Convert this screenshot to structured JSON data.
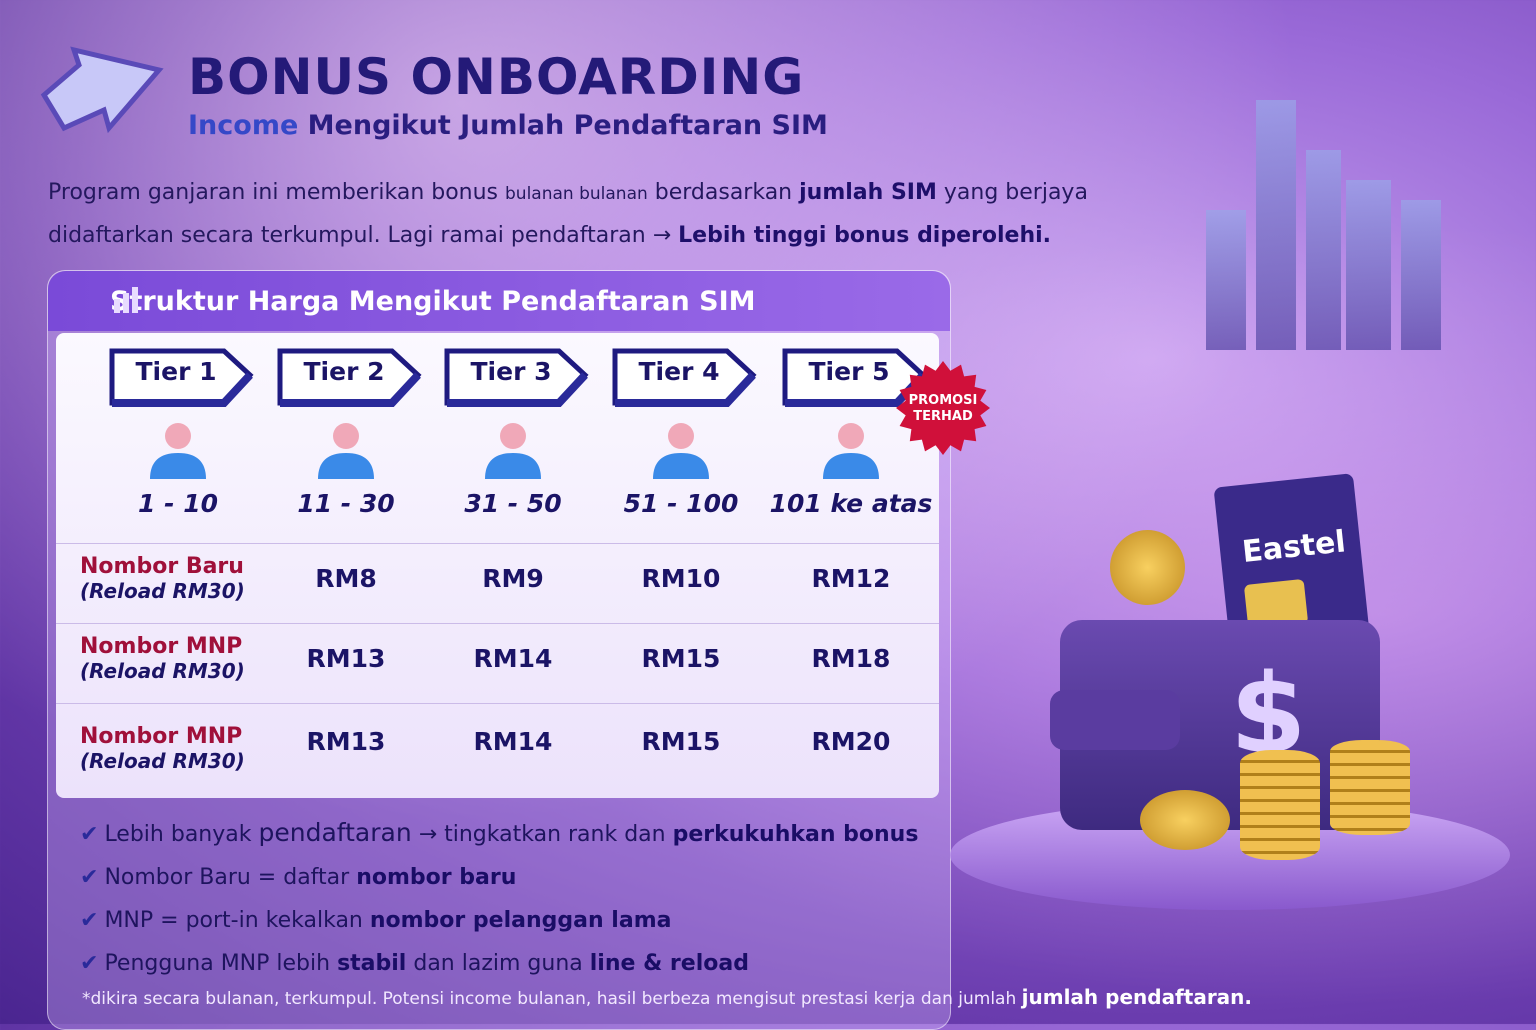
{
  "header": {
    "title": "BONUS ONBOARDING",
    "subtitle_highlight": "Income",
    "subtitle_rest": " Mengikut Jumlah Pendaftaran SIM"
  },
  "intro": {
    "p1": "Program ganjaran ini memberikan bonus ",
    "p1_small": "bulanan bulanan",
    "p1b": " berdasarkan ",
    "p1_bold": "jumlah SIM",
    "p1c": " yang berjaya",
    "p2": "didaftarkan secara terkumpul. Lagi ramai pendaftaran → ",
    "p2_bold": "Lebih tinggi bonus diperolehi."
  },
  "panel": {
    "title": "Struktur Harga Mengikut Pendaftaran SIM",
    "tiers": [
      {
        "label": "Tier 1",
        "range": "1 - 10"
      },
      {
        "label": "Tier 2",
        "range": "11 - 30"
      },
      {
        "label": "Tier 3",
        "range": "31 - 50"
      },
      {
        "label": "Tier 4",
        "range": "51 - 100"
      },
      {
        "label": "Tier 5",
        "range": "101 ke atas"
      }
    ],
    "promo_badge": [
      "PROMOSI",
      "TERHAD"
    ],
    "rows": [
      {
        "label": "Nombor Baru",
        "sub": "(Reload RM30)",
        "values": [
          "RM8",
          "RM9",
          "RM10",
          "RM12"
        ]
      },
      {
        "label": "Nombor MNP",
        "sub": "(Reload RM30)",
        "values": [
          "RM13",
          "RM14",
          "RM15",
          "RM18"
        ]
      },
      {
        "label": "Nombor MNP",
        "sub": "(Reload RM30)",
        "values": [
          "RM13",
          "RM14",
          "RM15",
          "RM20"
        ]
      }
    ]
  },
  "bullets": [
    {
      "a": "Lebih banyak ",
      "b": "pendaftaran",
      "c": " → tingkatkan rank dan ",
      "d": "perkukuhkan bonus"
    },
    {
      "a": "Nombor Baru = daftar ",
      "b": "",
      "c": "",
      "d": "nombor baru"
    },
    {
      "a": "MNP = port-in kekalkan ",
      "b": "",
      "c": "",
      "d": "nombor pelanggan lama"
    },
    {
      "a": "Pengguna MNP lebih ",
      "b": "",
      "c": "",
      "d": "stabil",
      "e": " dan lazim guna ",
      "f": "line & reload"
    }
  ],
  "footer": {
    "text": "*dikira secara bulanan, terkumpul. Potensi income bulanan, hasil berbeza mengisut prestasi kerja dan jumlah ",
    "bold": "jumlah pendaftaran."
  },
  "sim_brand": "Eastel",
  "colors": {
    "navy": "#1b1466",
    "accent_red": "#a0103a",
    "promo": "#d0103a",
    "panel_head": "#7a4ad8"
  }
}
